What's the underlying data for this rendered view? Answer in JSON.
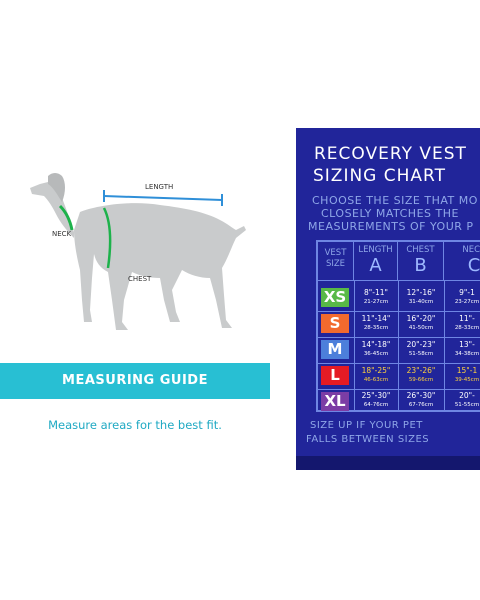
{
  "guide": {
    "labels": {
      "length": "LENGTH",
      "neck": "NECK",
      "chest": "CHEST"
    },
    "banner": "MEASURING GUIDE",
    "tagline": "Measure areas for the best fit.",
    "colors": {
      "teal": "#28bfd3",
      "dog": "#c9cbcc",
      "measure_green": "#1db24b",
      "measure_blue": "#2f8fd8"
    }
  },
  "chart": {
    "title_line1": "RECOVERY VEST",
    "title_line2": "SIZING CHART",
    "instructions": [
      "CHOOSE THE SIZE THAT MO",
      "CLOSELY MATCHES THE",
      "MEASUREMENTS OF YOUR P"
    ],
    "headers": {
      "vest_size": [
        "VEST",
        "SIZE"
      ],
      "columns": [
        {
          "name": "LENGTH",
          "letter": "A"
        },
        {
          "name": "CHEST",
          "letter": "B"
        },
        {
          "name": "NECK",
          "letter": "C"
        }
      ]
    },
    "rows": [
      {
        "size": "XS",
        "color": "#58b947",
        "text": "#ffffff",
        "length": [
          "8\"-11\"",
          "21-27cm"
        ],
        "chest": [
          "12\"-16\"",
          "31-40cm"
        ],
        "neck": [
          "9\"-1",
          "23-27cm"
        ]
      },
      {
        "size": "S",
        "color": "#f26a2e",
        "text": "#ffffff",
        "length": [
          "11\"-14\"",
          "28-35cm"
        ],
        "chest": [
          "16\"-20\"",
          "41-50cm"
        ],
        "neck": [
          "11\"-",
          "28-33cm"
        ]
      },
      {
        "size": "M",
        "color": "#4c7fdb",
        "text": "#ffffff",
        "length": [
          "14\"-18\"",
          "36-45cm"
        ],
        "chest": [
          "20\"-23\"",
          "51-58cm"
        ],
        "neck": [
          "13\"-",
          "34-38cm"
        ]
      },
      {
        "size": "L",
        "color": "#e51b24",
        "text": "#e51b24",
        "length": [
          "18\"-25\"",
          "46-63cm"
        ],
        "chest": [
          "23\"-26\"",
          "59-66cm"
        ],
        "neck": [
          "15\"-1",
          "39-45cm"
        ]
      },
      {
        "size": "XL",
        "color": "#7c3da5",
        "text": "#ffffff",
        "length": [
          "25\"-30\"",
          "64-76cm"
        ],
        "chest": [
          "26\"-30\"",
          "67-76cm"
        ],
        "neck": [
          "20\"-",
          "51-55cm"
        ]
      }
    ],
    "footer": [
      "SIZE UP IF YOUR PET",
      "FALLS BETWEEN SIZES"
    ],
    "colors": {
      "panel": "#21259a",
      "grid_line": "#6f86e3",
      "text_light": "#8fa7e8"
    }
  }
}
